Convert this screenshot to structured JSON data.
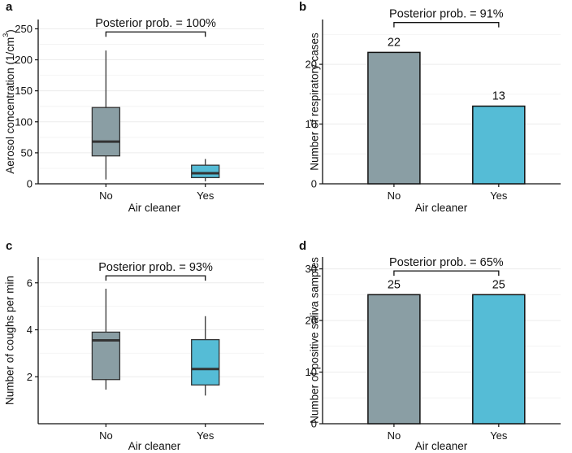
{
  "colors": {
    "no": "#8a9ea4",
    "yes": "#55bcd6",
    "stroke": "#111111",
    "grid": "#ececec"
  },
  "chart_data": [
    {
      "panel": "a",
      "type": "box",
      "xlabel": "Air cleaner",
      "ylabel": "Aerosol concentration (1/cm³)",
      "ylabel_main": "Aerosol concentration (1/cm",
      "ylabel_sup": "3",
      "ylabel_end": ")",
      "categories": [
        "No",
        "Yes"
      ],
      "ylim": [
        0,
        265
      ],
      "yticks": [
        0,
        50,
        100,
        150,
        200,
        250
      ],
      "boxes": [
        {
          "min": 7,
          "q1": 45,
          "median": 68,
          "q3": 123,
          "max": 215
        },
        {
          "min": 4,
          "q1": 10,
          "median": 17,
          "q3": 30,
          "max": 40
        }
      ],
      "annotation": "Posterior prob. = 100%",
      "bracket_y": 245
    },
    {
      "panel": "b",
      "type": "bar",
      "xlabel": "Air cleaner",
      "ylabel": "Number of respiratory cases",
      "categories": [
        "No",
        "Yes"
      ],
      "values": [
        22,
        13
      ],
      "labels": [
        "22",
        "13"
      ],
      "ylim": [
        0,
        27.5
      ],
      "yticks": [
        0,
        10,
        20
      ],
      "annotation": "Posterior prob. = 91%",
      "bracket_y": 27
    },
    {
      "panel": "c",
      "type": "box",
      "xlabel": "Air cleaner",
      "ylabel": "Number of coughs per min",
      "categories": [
        "No",
        "Yes"
      ],
      "ylim": [
        0,
        7.1
      ],
      "yticks": [
        2,
        4,
        6
      ],
      "boxes": [
        {
          "min": 1.45,
          "q1": 1.88,
          "median": 3.55,
          "q3": 3.9,
          "max": 5.75
        },
        {
          "min": 1.2,
          "q1": 1.65,
          "median": 2.33,
          "q3": 3.58,
          "max": 4.58
        }
      ],
      "annotation": "Posterior prob. = 93%",
      "bracket_y": 6.3
    },
    {
      "panel": "d",
      "type": "bar",
      "xlabel": "Air cleaner",
      "ylabel": "Number of positive saliva samples",
      "categories": [
        "No",
        "Yes"
      ],
      "values": [
        25,
        25
      ],
      "labels": [
        "25",
        "25"
      ],
      "ylim": [
        0,
        32.3
      ],
      "yticks": [
        0,
        10,
        20,
        30
      ],
      "annotation": "Posterior prob. = 65%",
      "bracket_y": 29.6
    }
  ]
}
